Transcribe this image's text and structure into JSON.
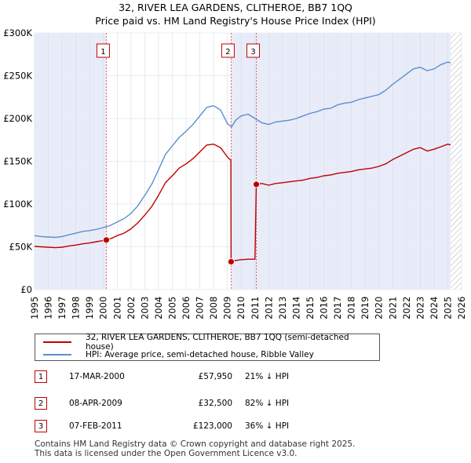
{
  "title_line1": "32, RIVER LEA GARDENS, CLITHEROE, BB7 1QQ",
  "title_line2": "Price paid vs. HM Land Registry's House Price Index (HPI)",
  "chart_data": {
    "type": "line",
    "title": "32, RIVER LEA GARDENS, CLITHEROE, BB7 1QQ — Price paid vs. HM Land Registry's House Price Index (HPI)",
    "xlabel": "",
    "ylabel": "",
    "xlim": [
      1995,
      2026
    ],
    "ylim": [
      0,
      300000
    ],
    "x_ticks": [
      "1995",
      "1996",
      "1997",
      "1998",
      "1999",
      "2000",
      "2001",
      "2002",
      "2003",
      "2004",
      "2005",
      "2006",
      "2007",
      "2008",
      "2009",
      "2010",
      "2011",
      "2012",
      "2013",
      "2014",
      "2015",
      "2016",
      "2017",
      "2018",
      "2019",
      "2020",
      "2021",
      "2022",
      "2023",
      "2024",
      "2025",
      "2026"
    ],
    "y_ticks": [
      {
        "value": 0,
        "label": "£0"
      },
      {
        "value": 50000,
        "label": "£50K"
      },
      {
        "value": 100000,
        "label": "£100K"
      },
      {
        "value": 150000,
        "label": "£150K"
      },
      {
        "value": 200000,
        "label": "£200K"
      },
      {
        "value": 250000,
        "label": "£250K"
      },
      {
        "value": 300000,
        "label": "£300K"
      }
    ],
    "grid": true,
    "shaded_periods": [
      [
        1995,
        2000.21
      ],
      [
        2009.27,
        2011.1
      ],
      [
        2011.1,
        2025.2
      ]
    ],
    "future_hatch_from": 2025.2,
    "series": [
      {
        "name": "HPI: Average price, semi-detached house, Ribble Valley",
        "color": "#5b8fcf",
        "points": [
          [
            1995.0,
            63000
          ],
          [
            1995.5,
            62000
          ],
          [
            1996.0,
            61500
          ],
          [
            1996.5,
            61000
          ],
          [
            1997.0,
            62000
          ],
          [
            1997.5,
            64000
          ],
          [
            1998.0,
            66000
          ],
          [
            1998.5,
            68000
          ],
          [
            1999.0,
            69000
          ],
          [
            1999.5,
            70500
          ],
          [
            2000.0,
            72500
          ],
          [
            2000.5,
            75000
          ],
          [
            2001.0,
            79000
          ],
          [
            2001.5,
            83000
          ],
          [
            2002.0,
            89000
          ],
          [
            2002.5,
            98000
          ],
          [
            2003.0,
            110000
          ],
          [
            2003.5,
            123000
          ],
          [
            2004.0,
            140000
          ],
          [
            2004.5,
            158000
          ],
          [
            2005.0,
            168000
          ],
          [
            2005.5,
            178000
          ],
          [
            2006.0,
            185000
          ],
          [
            2006.5,
            193000
          ],
          [
            2007.0,
            203000
          ],
          [
            2007.5,
            213000
          ],
          [
            2008.0,
            215000
          ],
          [
            2008.5,
            210000
          ],
          [
            2009.0,
            194000
          ],
          [
            2009.3,
            190000
          ],
          [
            2009.6,
            198000
          ],
          [
            2010.0,
            203000
          ],
          [
            2010.5,
            205000
          ],
          [
            2011.0,
            200000
          ],
          [
            2011.5,
            195000
          ],
          [
            2012.0,
            193000
          ],
          [
            2012.5,
            196000
          ],
          [
            2013.0,
            197000
          ],
          [
            2013.5,
            198000
          ],
          [
            2014.0,
            200000
          ],
          [
            2014.5,
            203000
          ],
          [
            2015.0,
            206000
          ],
          [
            2015.5,
            208000
          ],
          [
            2016.0,
            211000
          ],
          [
            2016.5,
            212000
          ],
          [
            2017.0,
            216000
          ],
          [
            2017.5,
            218000
          ],
          [
            2018.0,
            219000
          ],
          [
            2018.5,
            222000
          ],
          [
            2019.0,
            224000
          ],
          [
            2019.5,
            226000
          ],
          [
            2020.0,
            228000
          ],
          [
            2020.5,
            233000
          ],
          [
            2021.0,
            240000
          ],
          [
            2021.5,
            246000
          ],
          [
            2022.0,
            252000
          ],
          [
            2022.5,
            258000
          ],
          [
            2023.0,
            260000
          ],
          [
            2023.5,
            256000
          ],
          [
            2024.0,
            258000
          ],
          [
            2024.5,
            263000
          ],
          [
            2025.0,
            266000
          ],
          [
            2025.2,
            265000
          ]
        ]
      },
      {
        "name": "32, RIVER LEA GARDENS, CLITHEROE, BB7 1QQ (semi-detached house)",
        "color": "#c00000",
        "points": [
          [
            1995.0,
            50500
          ],
          [
            1995.5,
            50000
          ],
          [
            1996.0,
            49500
          ],
          [
            1996.5,
            49000
          ],
          [
            1997.0,
            49500
          ],
          [
            1997.5,
            51000
          ],
          [
            1998.0,
            52000
          ],
          [
            1998.5,
            53500
          ],
          [
            1999.0,
            54500
          ],
          [
            1999.5,
            56000
          ],
          [
            2000.21,
            57950
          ],
          [
            2000.6,
            60000
          ],
          [
            2001.0,
            63000
          ],
          [
            2001.5,
            66000
          ],
          [
            2002.0,
            71000
          ],
          [
            2002.5,
            78000
          ],
          [
            2003.0,
            87000
          ],
          [
            2003.5,
            97000
          ],
          [
            2004.0,
            110000
          ],
          [
            2004.5,
            125000
          ],
          [
            2005.0,
            133000
          ],
          [
            2005.5,
            142000
          ],
          [
            2006.0,
            147000
          ],
          [
            2006.5,
            153000
          ],
          [
            2007.0,
            161000
          ],
          [
            2007.5,
            169000
          ],
          [
            2008.0,
            170000
          ],
          [
            2008.5,
            166000
          ],
          [
            2009.0,
            155000
          ],
          [
            2009.25,
            151000
          ],
          [
            2009.27,
            32500
          ],
          [
            2009.6,
            34000
          ],
          [
            2010.0,
            35000
          ],
          [
            2010.5,
            35500
          ],
          [
            2011.0,
            35500
          ],
          [
            2011.1,
            123000
          ],
          [
            2011.5,
            124000
          ],
          [
            2012.0,
            122000
          ],
          [
            2012.5,
            124000
          ],
          [
            2013.0,
            125000
          ],
          [
            2013.5,
            126000
          ],
          [
            2014.0,
            127000
          ],
          [
            2014.5,
            128000
          ],
          [
            2015.0,
            130000
          ],
          [
            2015.5,
            131000
          ],
          [
            2016.0,
            133000
          ],
          [
            2016.5,
            134000
          ],
          [
            2017.0,
            136000
          ],
          [
            2017.5,
            137000
          ],
          [
            2018.0,
            138000
          ],
          [
            2018.5,
            140000
          ],
          [
            2019.0,
            141000
          ],
          [
            2019.5,
            142000
          ],
          [
            2020.0,
            144000
          ],
          [
            2020.5,
            147000
          ],
          [
            2021.0,
            152000
          ],
          [
            2021.5,
            156000
          ],
          [
            2022.0,
            160000
          ],
          [
            2022.5,
            164000
          ],
          [
            2023.0,
            166000
          ],
          [
            2023.5,
            162000
          ],
          [
            2024.0,
            164000
          ],
          [
            2024.5,
            167000
          ],
          [
            2025.0,
            170000
          ],
          [
            2025.2,
            169000
          ]
        ]
      }
    ],
    "sale_points": [
      {
        "label": "1",
        "x": 2000.21,
        "y": 57950
      },
      {
        "label": "2",
        "x": 2009.27,
        "y": 32500
      },
      {
        "label": "3",
        "x": 2011.1,
        "y": 123000
      }
    ],
    "markers": [
      {
        "label": "1",
        "x": 2000.21
      },
      {
        "label": "2",
        "x": 2009.27
      },
      {
        "label": "3",
        "x": 2011.1
      }
    ]
  },
  "legend": {
    "property_label": "32, RIVER LEA GARDENS, CLITHEROE, BB7 1QQ (semi-detached house)",
    "hpi_label": "HPI: Average price, semi-detached house, Ribble Valley",
    "property_color": "#c00000",
    "hpi_color": "#5b8fcf"
  },
  "sales": [
    {
      "num": "1",
      "date": "17-MAR-2000",
      "price": "£57,950",
      "pct": "21% ↓ HPI"
    },
    {
      "num": "2",
      "date": "08-APR-2009",
      "price": "£32,500",
      "pct": "82% ↓ HPI"
    },
    {
      "num": "3",
      "date": "07-FEB-2011",
      "price": "£123,000",
      "pct": "36% ↓ HPI"
    }
  ],
  "footer": {
    "line1": "Contains HM Land Registry data © Crown copyright and database right 2025.",
    "line2": "This data is licensed under the Open Government Licence v3.0."
  }
}
